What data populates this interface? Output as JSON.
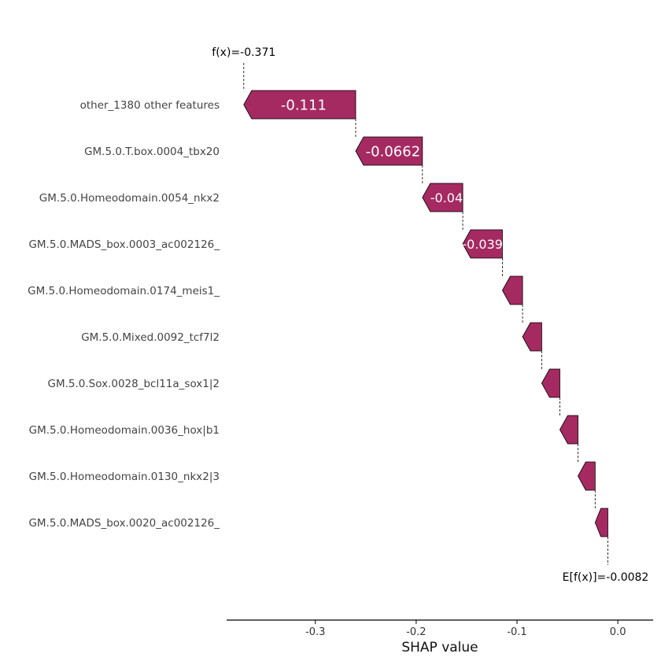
{
  "chart_data": {
    "type": "waterfall",
    "xlabel": "SHAP value",
    "xlim": [
      -0.388,
      0.035
    ],
    "x_ticks": [
      -0.3,
      -0.2,
      -0.1,
      0.0
    ],
    "x_tick_labels": [
      "-0.3",
      "-0.2",
      "-0.1",
      "0.0"
    ],
    "fx_label": "f(x)=-0.371",
    "efx_label": "E[f(x)]=-0.0082",
    "fx": -0.371,
    "base_value": -0.0082,
    "bar_color": "#a52a62",
    "features": [
      {
        "name": "other_1380 other features",
        "value": -0.111,
        "label": "-0.111"
      },
      {
        "name": "GM.5.0.T.box.0004_tbx20",
        "value": -0.0662,
        "label": "-0.0662"
      },
      {
        "name": "GM.5.0.Homeodomain.0054_nkx2",
        "value": -0.04,
        "label": "-0.04"
      },
      {
        "name": "GM.5.0.MADS_box.0003_ac002126_",
        "value": -0.0393,
        "label": "-0.0393"
      },
      {
        "name": "GM.5.0.Homeodomain.0174_meis1_",
        "value": -0.02,
        "label": ""
      },
      {
        "name": "GM.5.0.Mixed.0092_tcf7l2",
        "value": -0.019,
        "label": ""
      },
      {
        "name": "GM.5.0.Sox.0028_bcl11a_sox1|2",
        "value": -0.018,
        "label": ""
      },
      {
        "name": "GM.5.0.Homeodomain.0036_hox|b1",
        "value": -0.018,
        "label": ""
      },
      {
        "name": "GM.5.0.Homeodomain.0130_nkx2|3",
        "value": -0.017,
        "label": ""
      },
      {
        "name": "GM.5.0.MADS_box.0020_ac002126_",
        "value": -0.0126,
        "label": ""
      }
    ]
  }
}
